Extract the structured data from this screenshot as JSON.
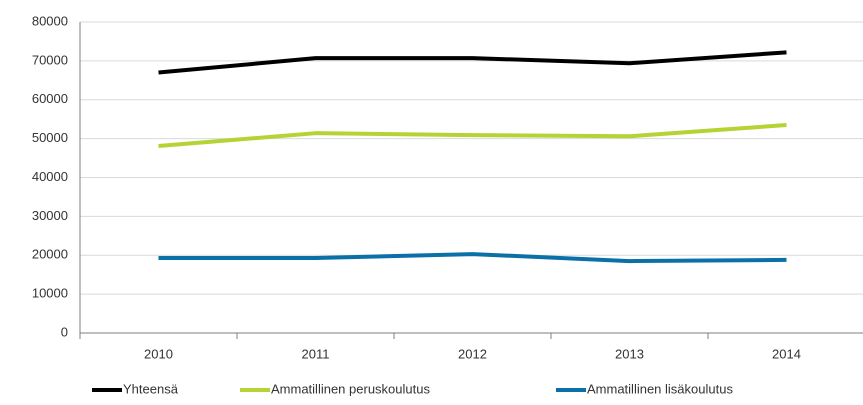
{
  "chart_data": {
    "type": "line",
    "categories": [
      "2010",
      "2011",
      "2012",
      "2013",
      "2014"
    ],
    "series": [
      {
        "name": "Yhteensä",
        "color": "#000000",
        "values": [
          67000,
          70700,
          70700,
          69400,
          72200
        ]
      },
      {
        "name": "Ammatillinen peruskoulutus",
        "color": "#b5d334",
        "values": [
          48100,
          51400,
          50900,
          50600,
          53500
        ]
      },
      {
        "name": "Ammatillinen lisäkoulutus",
        "color": "#0b6fa8",
        "values": [
          19300,
          19300,
          20300,
          18500,
          18800
        ]
      }
    ],
    "ylim": [
      0,
      80000
    ],
    "yticks": [
      0,
      10000,
      20000,
      30000,
      40000,
      50000,
      60000,
      70000,
      80000
    ],
    "grid": true,
    "legend": "bottom"
  }
}
